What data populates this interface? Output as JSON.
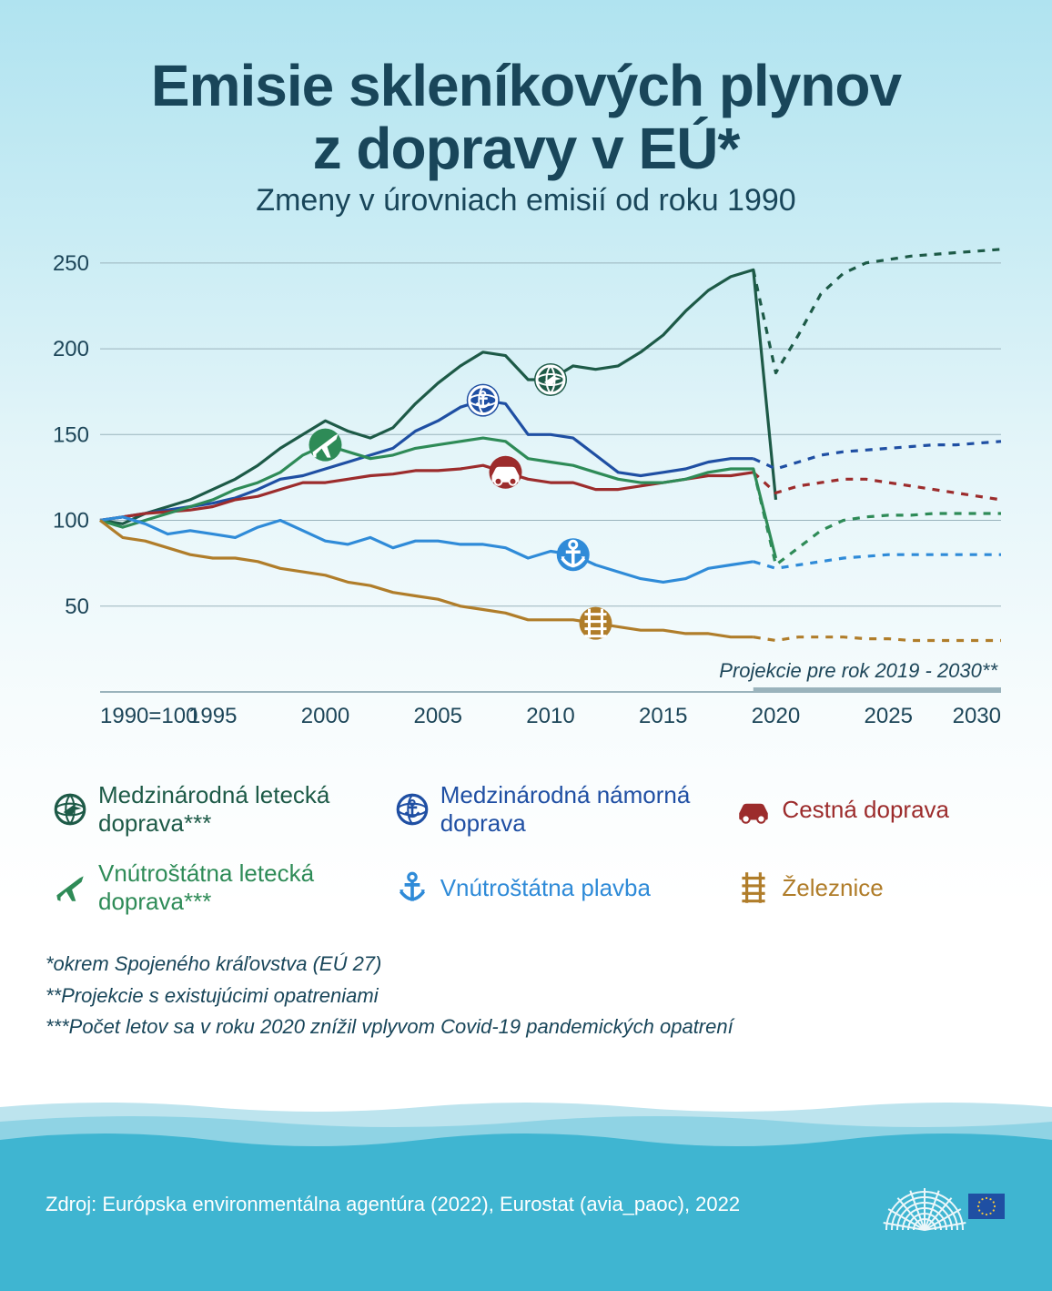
{
  "title_line1": "Emisie skleníkových plynov",
  "title_line2": "z dopravy v EÚ*",
  "subtitle": "Zmeny v úrovniach emisií od roku 1990",
  "colors": {
    "title": "#19465a",
    "subtitle": "#19465a",
    "axis": "#1d4659",
    "grid": "#9ab3bc",
    "baseline": "#9ab3bc",
    "proj_bar": "#9ab3bc",
    "wave_far": "#bde4ee",
    "wave_mid": "#8fd3e4",
    "wave_near": "#3fb5d1",
    "eu_blue": "#1f4fa3",
    "eu_yellow": "#f8c93a"
  },
  "title_fontsize": 64,
  "subtitle_fontsize": 34,
  "chart": {
    "type": "line",
    "ylim": [
      0,
      260
    ],
    "yticks": [
      50,
      100,
      150,
      200,
      250
    ],
    "xlim": [
      1990,
      2030
    ],
    "xticks": [
      1990,
      1995,
      2000,
      2005,
      2010,
      2015,
      2020,
      2025,
      2030
    ],
    "xtick_labels": [
      "1990=100",
      "1995",
      "2000",
      "2005",
      "2010",
      "2015",
      "2020",
      "2025",
      "2030"
    ],
    "historical_end": 2019,
    "proj_end": 2030,
    "proj_label": "Projekcie pre rok 2019 - 2030**",
    "series": [
      {
        "key": "intl_aviation",
        "label": "Medzinárodná letecká doprava***",
        "color": "#1d5a47",
        "icon": "globe-plane",
        "marker_year": 2010,
        "hist": [
          [
            1990,
            100
          ],
          [
            1991,
            98
          ],
          [
            1992,
            104
          ],
          [
            1993,
            108
          ],
          [
            1994,
            112
          ],
          [
            1995,
            118
          ],
          [
            1996,
            124
          ],
          [
            1997,
            132
          ],
          [
            1998,
            142
          ],
          [
            1999,
            150
          ],
          [
            2000,
            158
          ],
          [
            2001,
            152
          ],
          [
            2002,
            148
          ],
          [
            2003,
            154
          ],
          [
            2004,
            168
          ],
          [
            2005,
            180
          ],
          [
            2006,
            190
          ],
          [
            2007,
            198
          ],
          [
            2008,
            196
          ],
          [
            2009,
            182
          ],
          [
            2010,
            182
          ],
          [
            2011,
            190
          ],
          [
            2012,
            188
          ],
          [
            2013,
            190
          ],
          [
            2014,
            198
          ],
          [
            2015,
            208
          ],
          [
            2016,
            222
          ],
          [
            2017,
            234
          ],
          [
            2018,
            242
          ],
          [
            2019,
            246
          ],
          [
            2020,
            112
          ]
        ],
        "proj": [
          [
            2019,
            246
          ],
          [
            2020,
            186
          ],
          [
            2021,
            208
          ],
          [
            2022,
            232
          ],
          [
            2023,
            244
          ],
          [
            2024,
            250
          ],
          [
            2025,
            252
          ],
          [
            2026,
            254
          ],
          [
            2027,
            255
          ],
          [
            2028,
            256
          ],
          [
            2029,
            257
          ],
          [
            2030,
            258
          ]
        ]
      },
      {
        "key": "intl_maritime",
        "label": "Medzinárodná námorná doprava",
        "color": "#1f4fa3",
        "icon": "globe-anchor",
        "marker_year": 2007,
        "hist": [
          [
            1990,
            100
          ],
          [
            1991,
            102
          ],
          [
            1992,
            104
          ],
          [
            1993,
            106
          ],
          [
            1994,
            108
          ],
          [
            1995,
            110
          ],
          [
            1996,
            113
          ],
          [
            1997,
            118
          ],
          [
            1998,
            124
          ],
          [
            1999,
            126
          ],
          [
            2000,
            130
          ],
          [
            2001,
            134
          ],
          [
            2002,
            138
          ],
          [
            2003,
            142
          ],
          [
            2004,
            152
          ],
          [
            2005,
            158
          ],
          [
            2006,
            166
          ],
          [
            2007,
            170
          ],
          [
            2008,
            168
          ],
          [
            2009,
            150
          ],
          [
            2010,
            150
          ],
          [
            2011,
            148
          ],
          [
            2012,
            138
          ],
          [
            2013,
            128
          ],
          [
            2014,
            126
          ],
          [
            2015,
            128
          ],
          [
            2016,
            130
          ],
          [
            2017,
            134
          ],
          [
            2018,
            136
          ],
          [
            2019,
            136
          ]
        ],
        "proj": [
          [
            2019,
            136
          ],
          [
            2020,
            130
          ],
          [
            2021,
            134
          ],
          [
            2022,
            138
          ],
          [
            2023,
            140
          ],
          [
            2024,
            141
          ],
          [
            2025,
            142
          ],
          [
            2026,
            143
          ],
          [
            2027,
            144
          ],
          [
            2028,
            144
          ],
          [
            2029,
            145
          ],
          [
            2030,
            146
          ]
        ]
      },
      {
        "key": "road",
        "label": "Cestná doprava",
        "color": "#9c2c2c",
        "icon": "car",
        "marker_year": 2008,
        "hist": [
          [
            1990,
            100
          ],
          [
            1991,
            102
          ],
          [
            1992,
            104
          ],
          [
            1993,
            105
          ],
          [
            1994,
            106
          ],
          [
            1995,
            108
          ],
          [
            1996,
            112
          ],
          [
            1997,
            114
          ],
          [
            1998,
            118
          ],
          [
            1999,
            122
          ],
          [
            2000,
            122
          ],
          [
            2001,
            124
          ],
          [
            2002,
            126
          ],
          [
            2003,
            127
          ],
          [
            2004,
            129
          ],
          [
            2005,
            129
          ],
          [
            2006,
            130
          ],
          [
            2007,
            132
          ],
          [
            2008,
            128
          ],
          [
            2009,
            124
          ],
          [
            2010,
            122
          ],
          [
            2011,
            122
          ],
          [
            2012,
            118
          ],
          [
            2013,
            118
          ],
          [
            2014,
            120
          ],
          [
            2015,
            122
          ],
          [
            2016,
            124
          ],
          [
            2017,
            126
          ],
          [
            2018,
            126
          ],
          [
            2019,
            128
          ]
        ],
        "proj": [
          [
            2019,
            128
          ],
          [
            2020,
            116
          ],
          [
            2021,
            120
          ],
          [
            2022,
            122
          ],
          [
            2023,
            124
          ],
          [
            2024,
            124
          ],
          [
            2025,
            122
          ],
          [
            2026,
            120
          ],
          [
            2027,
            118
          ],
          [
            2028,
            116
          ],
          [
            2029,
            114
          ],
          [
            2030,
            112
          ]
        ]
      },
      {
        "key": "dom_aviation",
        "label": "Vnútroštátna letecká doprava***",
        "color": "#2e8b57",
        "icon": "plane",
        "marker_year": 2000,
        "hist": [
          [
            1990,
            100
          ],
          [
            1991,
            96
          ],
          [
            1992,
            100
          ],
          [
            1993,
            104
          ],
          [
            1994,
            108
          ],
          [
            1995,
            112
          ],
          [
            1996,
            118
          ],
          [
            1997,
            122
          ],
          [
            1998,
            128
          ],
          [
            1999,
            138
          ],
          [
            2000,
            144
          ],
          [
            2001,
            140
          ],
          [
            2002,
            136
          ],
          [
            2003,
            138
          ],
          [
            2004,
            142
          ],
          [
            2005,
            144
          ],
          [
            2006,
            146
          ],
          [
            2007,
            148
          ],
          [
            2008,
            146
          ],
          [
            2009,
            136
          ],
          [
            2010,
            134
          ],
          [
            2011,
            132
          ],
          [
            2012,
            128
          ],
          [
            2013,
            124
          ],
          [
            2014,
            122
          ],
          [
            2015,
            122
          ],
          [
            2016,
            124
          ],
          [
            2017,
            128
          ],
          [
            2018,
            130
          ],
          [
            2019,
            130
          ],
          [
            2020,
            78
          ]
        ],
        "proj": [
          [
            2019,
            130
          ],
          [
            2020,
            74
          ],
          [
            2021,
            84
          ],
          [
            2022,
            94
          ],
          [
            2023,
            100
          ],
          [
            2024,
            102
          ],
          [
            2025,
            103
          ],
          [
            2026,
            103
          ],
          [
            2027,
            104
          ],
          [
            2028,
            104
          ],
          [
            2029,
            104
          ],
          [
            2030,
            104
          ]
        ]
      },
      {
        "key": "dom_nav",
        "label": "Vnútroštátna plavba",
        "color": "#2f8bd8",
        "icon": "anchor",
        "marker_year": 2011,
        "hist": [
          [
            1990,
            100
          ],
          [
            1991,
            102
          ],
          [
            1992,
            98
          ],
          [
            1993,
            92
          ],
          [
            1994,
            94
          ],
          [
            1995,
            92
          ],
          [
            1996,
            90
          ],
          [
            1997,
            96
          ],
          [
            1998,
            100
          ],
          [
            1999,
            94
          ],
          [
            2000,
            88
          ],
          [
            2001,
            86
          ],
          [
            2002,
            90
          ],
          [
            2003,
            84
          ],
          [
            2004,
            88
          ],
          [
            2005,
            88
          ],
          [
            2006,
            86
          ],
          [
            2007,
            86
          ],
          [
            2008,
            84
          ],
          [
            2009,
            78
          ],
          [
            2010,
            82
          ],
          [
            2011,
            80
          ],
          [
            2012,
            74
          ],
          [
            2013,
            70
          ],
          [
            2014,
            66
          ],
          [
            2015,
            64
          ],
          [
            2016,
            66
          ],
          [
            2017,
            72
          ],
          [
            2018,
            74
          ],
          [
            2019,
            76
          ]
        ],
        "proj": [
          [
            2019,
            76
          ],
          [
            2020,
            72
          ],
          [
            2021,
            74
          ],
          [
            2022,
            76
          ],
          [
            2023,
            78
          ],
          [
            2024,
            79
          ],
          [
            2025,
            80
          ],
          [
            2026,
            80
          ],
          [
            2027,
            80
          ],
          [
            2028,
            80
          ],
          [
            2029,
            80
          ],
          [
            2030,
            80
          ]
        ]
      },
      {
        "key": "rail",
        "label": "Železnice",
        "color": "#b07d2a",
        "icon": "rail",
        "marker_year": 2012,
        "hist": [
          [
            1990,
            100
          ],
          [
            1991,
            90
          ],
          [
            1992,
            88
          ],
          [
            1993,
            84
          ],
          [
            1994,
            80
          ],
          [
            1995,
            78
          ],
          [
            1996,
            78
          ],
          [
            1997,
            76
          ],
          [
            1998,
            72
          ],
          [
            1999,
            70
          ],
          [
            2000,
            68
          ],
          [
            2001,
            64
          ],
          [
            2002,
            62
          ],
          [
            2003,
            58
          ],
          [
            2004,
            56
          ],
          [
            2005,
            54
          ],
          [
            2006,
            50
          ],
          [
            2007,
            48
          ],
          [
            2008,
            46
          ],
          [
            2009,
            42
          ],
          [
            2010,
            42
          ],
          [
            2011,
            42
          ],
          [
            2012,
            40
          ],
          [
            2013,
            38
          ],
          [
            2014,
            36
          ],
          [
            2015,
            36
          ],
          [
            2016,
            34
          ],
          [
            2017,
            34
          ],
          [
            2018,
            32
          ],
          [
            2019,
            32
          ]
        ],
        "proj": [
          [
            2019,
            32
          ],
          [
            2020,
            30
          ],
          [
            2021,
            32
          ],
          [
            2022,
            32
          ],
          [
            2023,
            32
          ],
          [
            2024,
            31
          ],
          [
            2025,
            31
          ],
          [
            2026,
            30
          ],
          [
            2027,
            30
          ],
          [
            2028,
            30
          ],
          [
            2029,
            30
          ],
          [
            2030,
            30
          ]
        ]
      }
    ]
  },
  "legend_order": [
    "intl_aviation",
    "intl_maritime",
    "road",
    "dom_aviation",
    "dom_nav",
    "rail"
  ],
  "footnotes": [
    "*okrem Spojeného kráľovstva (EÚ 27)",
    "**Projekcie s existujúcimi opatreniami",
    "***Počet letov sa v roku 2020 znížil vplyvom Covid-19 pandemických opatrení"
  ],
  "source": "Zdroj: Európska environmentálna agentúra (2022), Eurostat (avia_paoc), 2022"
}
